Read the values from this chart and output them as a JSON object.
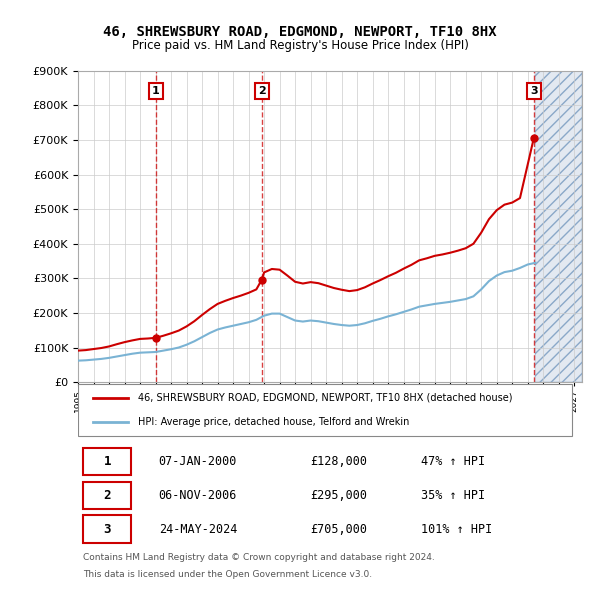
{
  "title": "46, SHREWSBURY ROAD, EDGMOND, NEWPORT, TF10 8HX",
  "subtitle": "Price paid vs. HM Land Registry's House Price Index (HPI)",
  "legend_line1": "46, SHREWSBURY ROAD, EDGMOND, NEWPORT, TF10 8HX (detached house)",
  "legend_line2": "HPI: Average price, detached house, Telford and Wrekin",
  "footer1": "Contains HM Land Registry data © Crown copyright and database right 2024.",
  "footer2": "This data is licensed under the Open Government Licence v3.0.",
  "table": [
    {
      "num": "1",
      "date": "07-JAN-2000",
      "price": "£128,000",
      "change": "47% ↑ HPI"
    },
    {
      "num": "2",
      "date": "06-NOV-2006",
      "price": "£295,000",
      "change": "35% ↑ HPI"
    },
    {
      "num": "3",
      "date": "24-MAY-2024",
      "price": "£705,000",
      "change": "101% ↑ HPI"
    }
  ],
  "ylim": [
    0,
    900000
  ],
  "yticks": [
    0,
    100000,
    200000,
    300000,
    400000,
    500000,
    600000,
    700000,
    800000,
    900000
  ],
  "xlim_start": 1995.0,
  "xlim_end": 2027.5,
  "sale_years": [
    2000.02,
    2006.84,
    2024.39
  ],
  "sale_prices": [
    128000,
    295000,
    705000
  ],
  "hpi_color": "#7ab3d4",
  "price_color": "#cc0000",
  "vline_color": "#cc0000",
  "background_color": "#ffffff",
  "grid_color": "#cccccc",
  "years_hpi": [
    1995,
    1995.5,
    1996,
    1996.5,
    1997,
    1997.5,
    1998,
    1998.5,
    1999,
    1999.5,
    2000,
    2000.5,
    2001,
    2001.5,
    2002,
    2002.5,
    2003,
    2003.5,
    2004,
    2004.5,
    2005,
    2005.5,
    2006,
    2006.5,
    2007,
    2007.5,
    2008,
    2008.5,
    2009,
    2009.5,
    2010,
    2010.5,
    2011,
    2011.5,
    2012,
    2012.5,
    2013,
    2013.5,
    2014,
    2014.5,
    2015,
    2015.5,
    2016,
    2016.5,
    2017,
    2017.5,
    2018,
    2018.5,
    2019,
    2019.5,
    2020,
    2020.5,
    2021,
    2021.5,
    2022,
    2022.5,
    2023,
    2023.5,
    2024,
    2024.5
  ],
  "hpi_values": [
    62000,
    63000,
    65000,
    67000,
    70000,
    74000,
    78000,
    82000,
    85000,
    86000,
    87000,
    91000,
    95000,
    100000,
    108000,
    118000,
    130000,
    142000,
    152000,
    158000,
    163000,
    168000,
    173000,
    180000,
    192000,
    198000,
    198000,
    188000,
    178000,
    175000,
    178000,
    176000,
    172000,
    168000,
    165000,
    163000,
    165000,
    170000,
    177000,
    183000,
    190000,
    196000,
    203000,
    210000,
    218000,
    222000,
    226000,
    229000,
    232000,
    236000,
    240000,
    248000,
    268000,
    292000,
    308000,
    318000,
    322000,
    330000,
    340000,
    345000
  ],
  "years_red": [
    1995,
    1995.5,
    1996,
    1996.5,
    1997,
    1997.5,
    1998,
    1998.5,
    1999,
    1999.5,
    2000.02,
    2000.5,
    2001,
    2001.5,
    2002,
    2002.5,
    2003,
    2003.5,
    2004,
    2004.5,
    2005,
    2005.5,
    2006,
    2006.5,
    2006.84,
    2007,
    2007.5,
    2008,
    2008.5,
    2009,
    2009.5,
    2010,
    2010.5,
    2011,
    2011.5,
    2012,
    2012.5,
    2013,
    2013.5,
    2014,
    2014.5,
    2015,
    2015.5,
    2016,
    2016.5,
    2017,
    2017.5,
    2018,
    2018.5,
    2019,
    2019.5,
    2020,
    2020.5,
    2021,
    2021.5,
    2022,
    2022.5,
    2023,
    2023.5,
    2024.39,
    2024.5
  ],
  "red_values": [
    91000,
    92500,
    95500,
    98500,
    103000,
    109500,
    115500,
    120500,
    124800,
    126000,
    128000,
    134000,
    141000,
    149000,
    161000,
    176000,
    194000,
    211000,
    226000,
    235000,
    243000,
    250000,
    258000,
    268000,
    295000,
    317000,
    327000,
    325000,
    308000,
    290000,
    285000,
    289000,
    286000,
    279000,
    272000,
    267000,
    263000,
    266000,
    274000,
    285000,
    295000,
    306000,
    316000,
    328000,
    339000,
    352000,
    358000,
    365000,
    369000,
    374000,
    380000,
    387000,
    400000,
    432000,
    471000,
    497000,
    513000,
    519000,
    532000,
    705000,
    710000
  ]
}
